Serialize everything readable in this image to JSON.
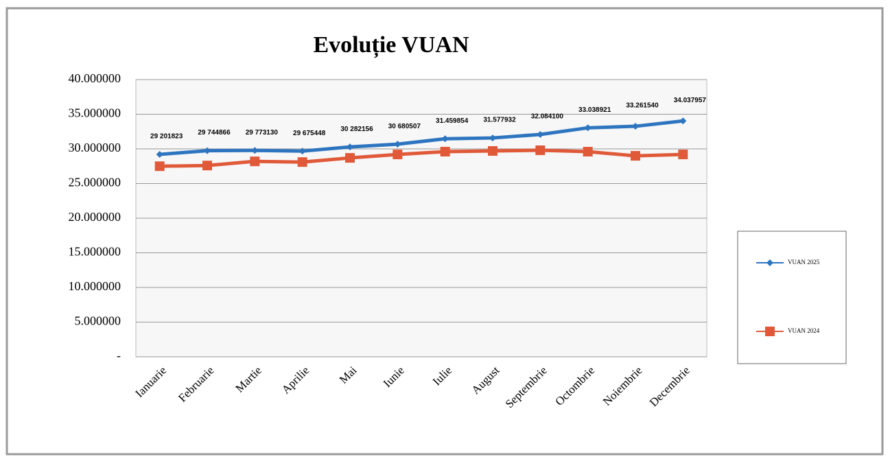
{
  "chart_data": {
    "type": "line",
    "title": "Evoluție VUAN",
    "categories": [
      "Ianuarie",
      "Februarie",
      "Martie",
      "Aprilie",
      "Mai",
      "Iunie",
      "Iulie",
      "August",
      "Septembrie",
      "Octombrie",
      "Noiembrie",
      "Decembrie"
    ],
    "series": [
      {
        "name": "VUAN 2025",
        "color": "#2e75c0",
        "marker": "diamond",
        "values": [
          29.201823,
          29.744866,
          29.77313,
          29.675448,
          30.282156,
          30.680507,
          31.459854,
          31.577932,
          32.0841,
          33.038921,
          33.26154,
          34.037957
        ],
        "value_labels": [
          "29 201823",
          "29 744866",
          "29 773130",
          "29 675448",
          "30 282156",
          "30 680507",
          "31.459854",
          "31.577932",
          "32.084100",
          "33.038921",
          "33.261540",
          "34.037957"
        ]
      },
      {
        "name": "VUAN 2024",
        "color": "#e05a3a",
        "marker": "square",
        "values": [
          27.5,
          27.6,
          28.2,
          28.1,
          28.7,
          29.2,
          29.6,
          29.7,
          29.8,
          29.6,
          29.0,
          29.2
        ]
      }
    ],
    "ylim": [
      0,
      40
    ],
    "yticks": [
      {
        "value": 0,
        "label": "-"
      },
      {
        "value": 5,
        "label": "5.000000"
      },
      {
        "value": 10,
        "label": "10.000000"
      },
      {
        "value": 15,
        "label": "15.000000"
      },
      {
        "value": 20,
        "label": "20.000000"
      },
      {
        "value": 25,
        "label": "25.000000"
      },
      {
        "value": 30,
        "label": "30.000000"
      },
      {
        "value": 35,
        "label": "35.000000"
      },
      {
        "value": 40,
        "label": "40.000000"
      }
    ],
    "grid": true,
    "legend": "right"
  }
}
